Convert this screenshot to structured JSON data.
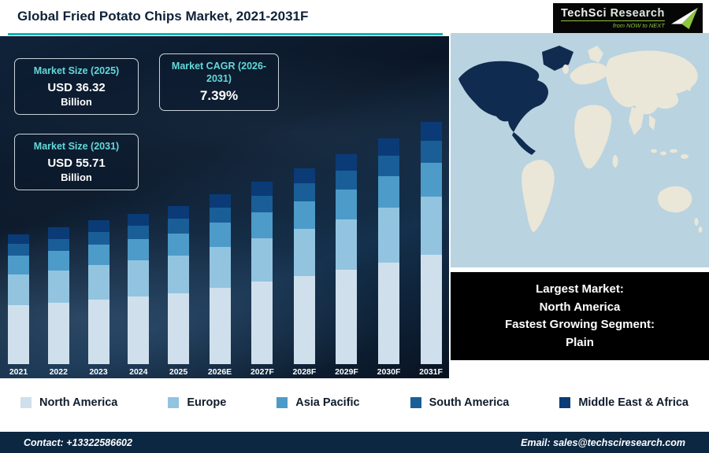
{
  "title": "Global Fried Potato Chips Market, 2021-2031F",
  "logo": {
    "brand_part1": "TechSci",
    "brand_part2": "Research",
    "tagline": "from NOW to NEXT"
  },
  "info_boxes": {
    "size_2025": {
      "label": "Market Size (2025)",
      "value": "USD 36.32",
      "unit": "Billion"
    },
    "cagr": {
      "label": "Market CAGR (2026-2031)",
      "value": "7.39%"
    },
    "size_2031": {
      "label": "Market Size (2031)",
      "value": "USD 55.71",
      "unit": "Billion"
    }
  },
  "chart_data": {
    "type": "bar",
    "stacked": true,
    "title": "Global Fried Potato Chips Market, 2021-2031F",
    "units": "USD Billion",
    "categories": [
      "2021",
      "2022",
      "2023",
      "2024",
      "2025",
      "2026E",
      "2027F",
      "2028F",
      "2029F",
      "2030F",
      "2031F"
    ],
    "series": [
      {
        "name": "North America",
        "color": "#cfe0ec",
        "values": [
          13.5,
          14.1,
          14.9,
          15.6,
          16.3,
          17.6,
          18.9,
          20.3,
          21.7,
          23.4,
          25.1
        ]
      },
      {
        "name": "Europe",
        "color": "#92c4e0",
        "values": [
          7.2,
          7.5,
          7.9,
          8.3,
          8.7,
          9.4,
          10.1,
          10.8,
          11.6,
          12.5,
          13.4
        ]
      },
      {
        "name": "Asia Pacific",
        "color": "#4d9bc8",
        "values": [
          4.2,
          4.4,
          4.6,
          4.8,
          5.1,
          5.5,
          5.9,
          6.3,
          6.8,
          7.3,
          7.8
        ]
      },
      {
        "name": "South America",
        "color": "#1a5e97",
        "values": [
          2.7,
          2.8,
          3.0,
          3.1,
          3.3,
          3.5,
          3.8,
          4.1,
          4.3,
          4.7,
          5.0
        ]
      },
      {
        "name": "Middle East & Africa",
        "color": "#0a3b77",
        "values": [
          2.3,
          2.6,
          2.6,
          2.8,
          2.9,
          3.0,
          3.2,
          3.5,
          3.9,
          4.0,
          4.4
        ]
      }
    ],
    "xlabel": "",
    "ylabel": "",
    "ylim": [
      0,
      60
    ],
    "grid": false,
    "legend_position": "bottom"
  },
  "note_box": {
    "lines": [
      "Largest Market:",
      "North America",
      "Fastest Growing Segment:",
      "Plain"
    ]
  },
  "footer": {
    "contact": "Contact: +13322586602",
    "email": "Email: sales@techsciresearch.com"
  },
  "colors": {
    "accent_teal": "#0db5b5",
    "panel_navy": "#0b1a2e",
    "footer_navy": "#0c2742",
    "logo_green": "#8dc63f",
    "info_label_teal": "#63d8d8",
    "map_ocean": "#b9d3e0",
    "map_land": "#eae6d8",
    "map_highlight_north_america": "#0f2b4f"
  }
}
